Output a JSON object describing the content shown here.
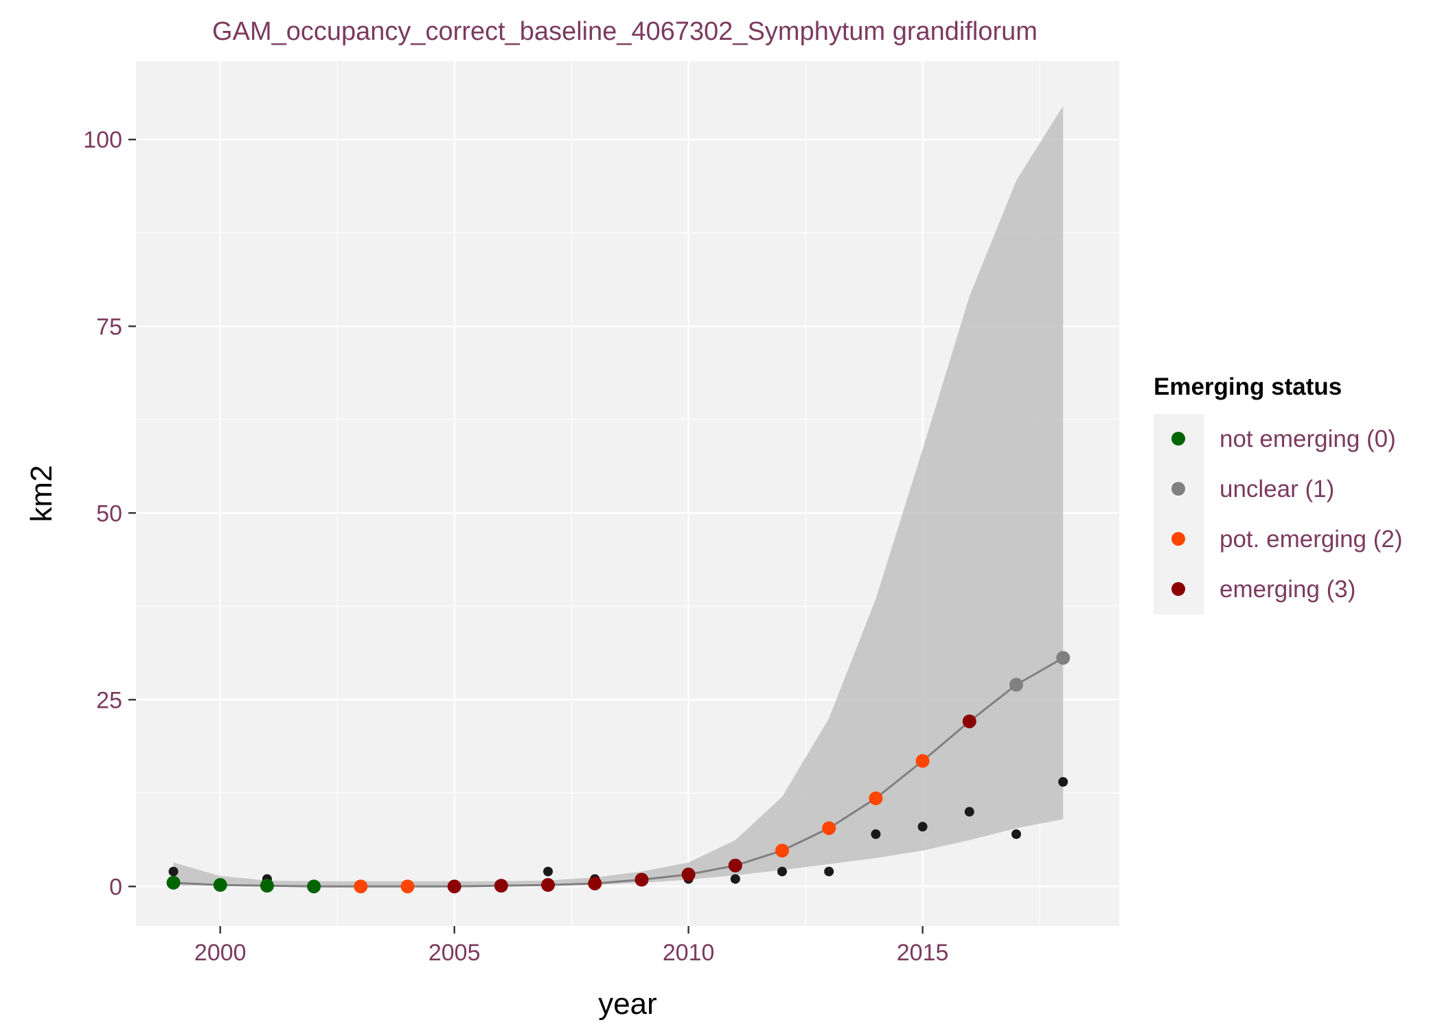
{
  "colors": {
    "text": "#7B3A5E",
    "axis_title": "#000000",
    "legend_title": "#000000",
    "panel_bg": "#F2F2F2",
    "grid": "#FFFFFF",
    "ribbon": "#BDBDBD",
    "fit_line": "#808080",
    "observed_point": "#1a1a1a"
  },
  "chart_data": {
    "type": "line",
    "title": "GAM_occupancy_correct_baseline_4067302_Symphytum grandiflorum",
    "xlabel": "year",
    "ylabel": "km2",
    "xlim": [
      1998.2,
      2019.2
    ],
    "ylim": [
      -5.3,
      110.5
    ],
    "x_ticks": [
      2000,
      2005,
      2010,
      2015
    ],
    "y_ticks": [
      0,
      25,
      50,
      75,
      100
    ],
    "grid": true,
    "legend_position": "right",
    "legend": {
      "title": "Emerging status",
      "items": [
        {
          "label": "not emerging (0)",
          "color": "#006400"
        },
        {
          "label": "unclear (1)",
          "color": "#808080"
        },
        {
          "label": "pot. emerging (2)",
          "color": "#FF4500"
        },
        {
          "label": "emerging (3)",
          "color": "#8B0000"
        }
      ]
    },
    "fit": {
      "x": [
        1999,
        2000,
        2001,
        2002,
        2003,
        2004,
        2005,
        2006,
        2007,
        2008,
        2009,
        2010,
        2011,
        2012,
        2013,
        2014,
        2015,
        2016,
        2017,
        2018
      ],
      "y": [
        0.5,
        0.2,
        0.1,
        0.0,
        0.0,
        0.0,
        0.0,
        0.1,
        0.2,
        0.4,
        0.9,
        1.6,
        2.8,
        4.8,
        7.8,
        11.8,
        16.8,
        22.1,
        27.0,
        30.6
      ],
      "lower": [
        0.1,
        0.1,
        0.0,
        0.0,
        0.0,
        0.0,
        0.0,
        0.0,
        0.1,
        0.2,
        0.5,
        0.9,
        1.5,
        2.2,
        3.0,
        3.8,
        4.8,
        6.2,
        7.8,
        9.0
      ],
      "upper": [
        3.2,
        1.4,
        0.8,
        0.7,
        0.7,
        0.7,
        0.7,
        0.7,
        0.8,
        1.2,
        2.0,
        3.2,
        6.2,
        12.0,
        22.5,
        38.5,
        58.5,
        79.0,
        94.5,
        104.5
      ],
      "status": [
        0,
        0,
        0,
        0,
        2,
        2,
        3,
        3,
        3,
        3,
        3,
        3,
        3,
        2,
        2,
        2,
        2,
        3,
        1,
        1
      ]
    },
    "observed": {
      "x": [
        1999,
        2000,
        2001,
        2002,
        2003,
        2004,
        2005,
        2006,
        2007,
        2008,
        2009,
        2010,
        2011,
        2012,
        2013,
        2014,
        2015,
        2016,
        2017,
        2018
      ],
      "y": [
        2,
        0,
        1,
        0,
        0,
        0,
        0,
        0,
        2,
        1,
        1,
        1,
        1,
        2,
        2,
        7,
        8,
        10,
        7,
        14
      ]
    }
  }
}
